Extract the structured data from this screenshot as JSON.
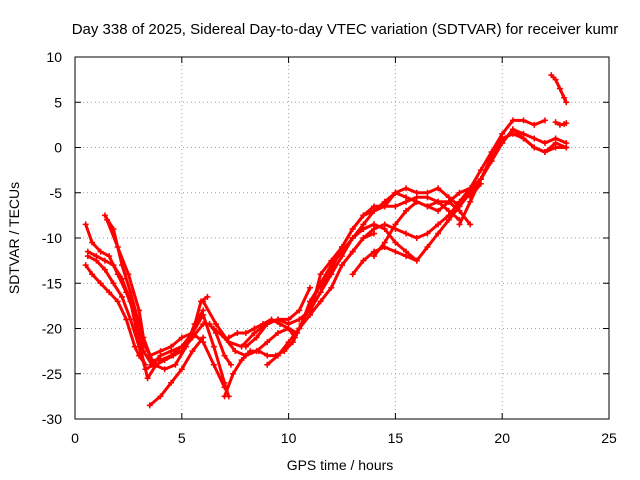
{
  "chart_data": {
    "type": "scatter",
    "title": "Day 338 of 2025, Sidereal Day-to-day VTEC variation (SDTVAR) for receiver kumr",
    "xlabel": "GPS time / hours",
    "ylabel": "SDTVAR / TECUs",
    "xlim": [
      0,
      25
    ],
    "ylim": [
      -30,
      10
    ],
    "xticks": [
      0,
      5,
      10,
      15,
      20,
      25
    ],
    "yticks": [
      -30,
      -25,
      -20,
      -15,
      -10,
      -5,
      0,
      5,
      10
    ],
    "grid": true,
    "marker": "plus",
    "color": "#ff0000",
    "series": [
      {
        "x": [
          0.5,
          0.8,
          1.2,
          1.6,
          2.0,
          2.4,
          2.8,
          3.1,
          3.5,
          4.0,
          4.5,
          5.0,
          5.5,
          6.0,
          6.5,
          7.0
        ],
        "y": [
          -8.5,
          -10.5,
          -11.5,
          -12.0,
          -14.0,
          -16.0,
          -18.5,
          -21.0,
          -23.0,
          -22.5,
          -22.0,
          -21.0,
          -20.5,
          -21.5,
          -24.0,
          -26.5
        ]
      },
      {
        "x": [
          0.5,
          0.8,
          1.2,
          1.6,
          2.0,
          2.4,
          2.8,
          3.0,
          3.3
        ],
        "y": [
          -13.0,
          -14.0,
          -15.0,
          -16.0,
          -17.0,
          -19.0,
          -22.0,
          -23.0,
          -24.0
        ]
      },
      {
        "x": [
          0.6,
          1.0,
          1.4,
          1.8,
          2.2,
          2.6,
          3.0,
          3.4,
          3.8,
          4.2,
          4.6,
          5.0,
          5.5,
          6.0,
          6.3,
          6.6,
          7.0,
          7.3
        ],
        "y": [
          -11.5,
          -12.0,
          -12.5,
          -13.0,
          -14.5,
          -17.0,
          -21.5,
          -25.5,
          -24.0,
          -23.5,
          -23.0,
          -22.5,
          -21.0,
          -19.5,
          -19.5,
          -20.5,
          -23.0,
          -24.0
        ]
      },
      {
        "x": [
          0.6,
          1.0,
          1.4,
          1.8,
          2.2,
          2.6,
          3.0,
          3.3,
          3.7,
          4.2,
          4.7,
          5.2,
          5.6,
          6.0
        ],
        "y": [
          -12.0,
          -12.5,
          -13.5,
          -15.0,
          -16.5,
          -19.0,
          -22.0,
          -24.5,
          -24.0,
          -24.5,
          -24.0,
          -22.0,
          -19.5,
          -18.0
        ]
      },
      {
        "x": [
          1.4,
          1.8,
          2.2,
          2.6,
          3.0,
          3.2,
          3.6,
          4.0,
          4.5,
          5.0,
          5.5,
          5.9,
          6.2
        ],
        "y": [
          -7.5,
          -9.0,
          -13.0,
          -16.0,
          -19.5,
          -22.5,
          -24.0,
          -23.0,
          -22.5,
          -22.0,
          -20.5,
          -17.0,
          -16.5
        ]
      },
      {
        "x": [
          1.5,
          2.0,
          2.5,
          3.0,
          3.2,
          3.6,
          4.0,
          4.5,
          5.0,
          5.5,
          6.0,
          6.5,
          7.0,
          7.2
        ],
        "y": [
          -8.0,
          -11.0,
          -14.0,
          -18.0,
          -21.0,
          -23.5,
          -23.5,
          -23.0,
          -22.0,
          -20.5,
          -18.5,
          -22.0,
          -26.0,
          -27.5
        ]
      },
      {
        "x": [
          3.5,
          4.0,
          4.5,
          5.0,
          5.5,
          6.0
        ],
        "y": [
          -28.5,
          -27.5,
          -26.0,
          -24.5,
          -22.5,
          -21.0
        ]
      },
      {
        "x": [
          6.0,
          6.6,
          7.2,
          7.8,
          8.4,
          9.0,
          9.5,
          10.0,
          10.5,
          11.0
        ],
        "y": [
          -17.0,
          -19.5,
          -21.5,
          -22.0,
          -20.5,
          -19.5,
          -19.0,
          -19.0,
          -18.0,
          -15.5
        ]
      },
      {
        "x": [
          6.5,
          7.0,
          7.5,
          8.0,
          8.5,
          9.0,
          9.5,
          10.0,
          10.3
        ],
        "y": [
          -20.0,
          -21.0,
          -22.5,
          -23.0,
          -22.5,
          -21.5,
          -20.5,
          -20.0,
          -21.0
        ]
      },
      {
        "x": [
          7.0,
          7.4,
          7.8,
          8.2,
          8.6,
          9.0,
          9.4,
          9.8,
          10.2,
          10.6,
          11.0,
          11.4
        ],
        "y": [
          -27.5,
          -25.0,
          -23.5,
          -22.5,
          -22.5,
          -23.0,
          -23.0,
          -22.5,
          -21.5,
          -19.5,
          -17.0,
          -15.5
        ]
      },
      {
        "x": [
          7.2,
          7.6,
          8.0,
          8.4,
          8.8,
          9.2,
          9.6,
          10.0,
          10.4
        ],
        "y": [
          -21.0,
          -20.5,
          -20.5,
          -20.0,
          -19.5,
          -19.0,
          -19.5,
          -20.0,
          -20.5
        ]
      },
      {
        "x": [
          8.0,
          8.5,
          9.0,
          9.5,
          10.0,
          10.5,
          11.0,
          11.5,
          12.0,
          12.5,
          13.0,
          13.5,
          14.0
        ],
        "y": [
          -22.0,
          -21.0,
          -19.5,
          -19.0,
          -19.5,
          -19.0,
          -18.0,
          -16.0,
          -14.0,
          -12.0,
          -10.0,
          -9.0,
          -8.5
        ]
      },
      {
        "x": [
          9.0,
          9.5,
          10.0,
          10.5,
          11.0,
          11.5,
          12.0,
          12.5,
          13.0,
          13.5,
          14.0
        ],
        "y": [
          -24.0,
          -23.0,
          -21.5,
          -20.0,
          -18.5,
          -17.0,
          -15.5,
          -13.0,
          -11.5,
          -10.0,
          -9.5
        ]
      },
      {
        "x": [
          10.5,
          11.0,
          11.5,
          12.0,
          12.5,
          13.0,
          13.5,
          14.0,
          14.5,
          15.0,
          15.5,
          16.0
        ],
        "y": [
          -20.0,
          -17.5,
          -15.0,
          -13.0,
          -11.5,
          -10.0,
          -9.0,
          -8.5,
          -9.0,
          -10.5,
          -11.5,
          -12.5
        ]
      },
      {
        "x": [
          11.0,
          11.5,
          12.0,
          12.5,
          13.0,
          13.5,
          14.0,
          14.5,
          15.0,
          15.5,
          16.0,
          16.5,
          17.0,
          17.5,
          18.0
        ],
        "y": [
          -18.5,
          -14.0,
          -12.5,
          -11.0,
          -9.0,
          -7.5,
          -6.5,
          -6.5,
          -6.5,
          -6.0,
          -5.5,
          -5.5,
          -6.0,
          -7.0,
          -8.0
        ]
      },
      {
        "x": [
          11.5,
          12.0,
          12.5,
          13.0,
          13.5,
          14.0,
          14.5,
          15.0,
          15.5,
          16.0,
          16.5,
          17.0,
          17.5,
          18.0
        ],
        "y": [
          -15.5,
          -13.5,
          -11.0,
          -9.0,
          -7.5,
          -7.0,
          -6.0,
          -5.0,
          -4.5,
          -5.0,
          -5.0,
          -4.5,
          -5.5,
          -6.5
        ]
      },
      {
        "x": [
          12.0,
          12.5,
          13.0,
          13.5,
          14.0,
          14.5,
          15.0,
          15.5,
          16.0,
          16.5,
          17.0,
          17.5,
          18.0,
          18.5
        ],
        "y": [
          -13.0,
          -11.5,
          -10.0,
          -8.5,
          -7.0,
          -6.5,
          -5.0,
          -5.5,
          -6.0,
          -6.5,
          -6.0,
          -6.0,
          -7.0,
          -8.5
        ]
      },
      {
        "x": [
          12.5,
          13.0,
          13.5,
          14.0,
          14.5,
          15.0,
          15.5,
          16.0,
          16.5,
          17.0,
          17.5,
          18.0,
          18.5,
          19.0,
          19.5,
          20.0,
          20.5,
          21.0,
          21.5,
          22.0
        ],
        "y": [
          -13.0,
          -11.5,
          -10.0,
          -9.0,
          -8.5,
          -9.0,
          -9.5,
          -10.0,
          -9.5,
          -8.5,
          -7.5,
          -6.0,
          -4.5,
          -2.5,
          -0.5,
          1.5,
          3.0,
          3.0,
          2.5,
          3.0
        ]
      },
      {
        "x": [
          13.0,
          13.5,
          14.0,
          14.5,
          15.0,
          15.5,
          16.0,
          16.5,
          17.0,
          17.5,
          18.0,
          18.5,
          19.0,
          19.5,
          20.0,
          20.5,
          21.0,
          21.5,
          22.0,
          22.5,
          23.0
        ],
        "y": [
          -14.0,
          -12.5,
          -11.5,
          -11.0,
          -11.5,
          -12.0,
          -12.5,
          -11.0,
          -9.5,
          -8.0,
          -6.5,
          -5.0,
          -3.5,
          -1.5,
          0.5,
          2.0,
          1.5,
          1.0,
          0.5,
          1.0,
          0.5
        ]
      },
      {
        "x": [
          14.0,
          14.5,
          15.0,
          15.5,
          16.0,
          16.5,
          17.0,
          17.5,
          18.0,
          18.5,
          19.0,
          19.5,
          20.0,
          20.5,
          21.0,
          21.5,
          22.0,
          22.5,
          23.0
        ],
        "y": [
          -12.0,
          -10.5,
          -8.5,
          -7.0,
          -6.0,
          -6.5,
          -7.0,
          -6.0,
          -5.0,
          -4.5,
          -3.5,
          -1.0,
          1.0,
          1.5,
          1.0,
          0.0,
          -0.5,
          0.0,
          0.0
        ]
      },
      {
        "x": [
          18.0,
          18.5,
          19.0,
          19.5,
          20.0,
          20.5,
          21.0,
          21.5,
          22.0,
          22.5,
          23.0
        ],
        "y": [
          -8.5,
          -6.0,
          -3.5,
          -1.5,
          0.5,
          2.0,
          1.0,
          0.0,
          -0.5,
          0.5,
          0.0
        ]
      },
      {
        "x": [
          18.5,
          19.0
        ],
        "y": [
          -5.5,
          -4.0
        ]
      },
      {
        "x": [
          22.3,
          22.5,
          22.7,
          22.9,
          23.0
        ],
        "y": [
          8.0,
          7.5,
          6.5,
          5.5,
          5.0
        ]
      },
      {
        "x": [
          22.5,
          22.7,
          22.9,
          23.0
        ],
        "y": [
          2.8,
          2.5,
          2.6,
          2.7
        ]
      }
    ]
  }
}
